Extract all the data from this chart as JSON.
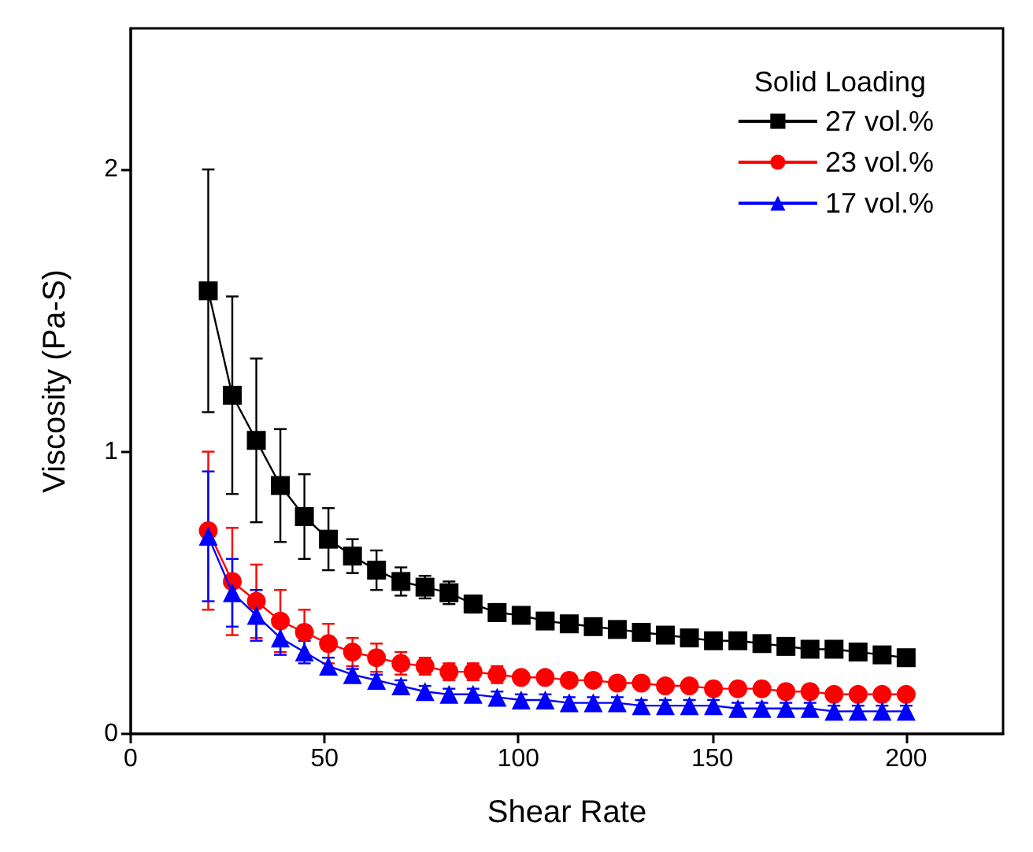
{
  "chart_data": {
    "type": "line",
    "xlabel": "Shear Rate",
    "ylabel": "Viscosity (Pa-S)",
    "legend_title": "Solid Loading",
    "legend": "top right",
    "grid": false,
    "line_style": "solid",
    "x": [
      20,
      26.2,
      32.4,
      38.6,
      44.8,
      51,
      57.2,
      63.4,
      69.7,
      75.9,
      82.1,
      88.3,
      94.5,
      100.7,
      106.9,
      113.1,
      119.3,
      125.5,
      131.7,
      137.9,
      144.1,
      150.3,
      156.6,
      162.8,
      169,
      175.2,
      181.4,
      187.6,
      193.8,
      200
    ],
    "xlim": [
      0,
      225
    ],
    "xticks": [
      0,
      50,
      100,
      150,
      200
    ],
    "ylim": [
      0,
      2.5
    ],
    "yticks": [
      0,
      1,
      2
    ],
    "series": [
      {
        "name": "27 vol.%",
        "color": "#000000",
        "marker": "square",
        "values": [
          1.57,
          1.2,
          1.04,
          0.88,
          0.77,
          0.69,
          0.63,
          0.58,
          0.54,
          0.52,
          0.5,
          0.46,
          0.43,
          0.42,
          0.4,
          0.39,
          0.38,
          0.37,
          0.36,
          0.35,
          0.34,
          0.33,
          0.33,
          0.32,
          0.31,
          0.3,
          0.3,
          0.29,
          0.28,
          0.27
        ],
        "errors": [
          0.43,
          0.35,
          0.29,
          0.2,
          0.15,
          0.11,
          0.06,
          0.07,
          0.05,
          0.04,
          0.04,
          0.03,
          0.03,
          0.02,
          0.02,
          0.02,
          0.02,
          0.02,
          0.02,
          0.02,
          0.01,
          0.01,
          0.01,
          0.01,
          0.01,
          0.01,
          0.01,
          0.01,
          0.01,
          0.01
        ]
      },
      {
        "name": "23 vol.%",
        "color": "#ff0000",
        "marker": "circle",
        "values": [
          0.72,
          0.54,
          0.47,
          0.4,
          0.36,
          0.32,
          0.29,
          0.27,
          0.25,
          0.24,
          0.22,
          0.22,
          0.21,
          0.2,
          0.2,
          0.19,
          0.19,
          0.18,
          0.18,
          0.17,
          0.17,
          0.16,
          0.16,
          0.16,
          0.15,
          0.15,
          0.14,
          0.14,
          0.14,
          0.14
        ],
        "errors": [
          0.28,
          0.19,
          0.13,
          0.11,
          0.08,
          0.07,
          0.05,
          0.05,
          0.04,
          0.03,
          0.03,
          0.03,
          0.03,
          0.02,
          0.02,
          0.02,
          0.02,
          0.02,
          0.02,
          0.02,
          0.02,
          0.01,
          0.01,
          0.01,
          0.01,
          0.01,
          0.01,
          0.01,
          0.01,
          0.01
        ]
      },
      {
        "name": "17 vol.%",
        "color": "#0000ff",
        "marker": "triangle",
        "values": [
          0.7,
          0.5,
          0.42,
          0.34,
          0.29,
          0.24,
          0.21,
          0.19,
          0.17,
          0.15,
          0.14,
          0.14,
          0.13,
          0.12,
          0.12,
          0.11,
          0.11,
          0.11,
          0.1,
          0.1,
          0.1,
          0.1,
          0.09,
          0.09,
          0.09,
          0.09,
          0.08,
          0.08,
          0.08,
          0.08
        ],
        "errors": [
          0.23,
          0.12,
          0.09,
          0.06,
          0.04,
          0.03,
          0.02,
          0.02,
          0.02,
          0.02,
          0.02,
          0.02,
          0.02,
          0.02,
          0.02,
          0.02,
          0.02,
          0.02,
          0.02,
          0.02,
          0.02,
          0.02,
          0.02,
          0.02,
          0.02,
          0.02,
          0.02,
          0.02,
          0.02,
          0.02
        ]
      }
    ]
  }
}
